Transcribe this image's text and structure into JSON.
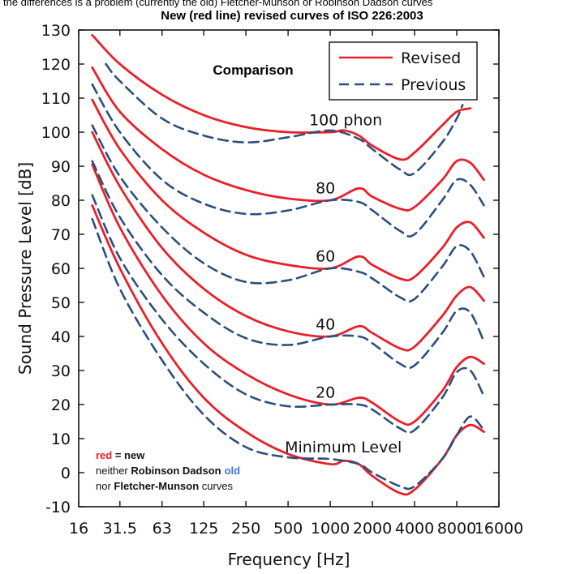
{
  "header": {
    "top_text": "the differences is a problem (currently the old) Fletcher-Munson or Robinson Dadson curves",
    "title": "New (red line) revised curves of ISO 226:2003"
  },
  "chart_data": {
    "type": "line",
    "title": "Comparison",
    "xlabel": "Frequency [Hz]",
    "ylabel": "Sound Pressure Level [dB]",
    "x_scale": "log",
    "x_ticks": [
      16,
      31.5,
      63,
      125,
      250,
      500,
      1000,
      2000,
      4000,
      8000,
      16000
    ],
    "x_tick_labels": [
      "16",
      "31.5",
      "63",
      "125",
      "250",
      "500",
      "1000",
      "2000",
      "4000",
      "8000",
      "16000"
    ],
    "y_ticks": [
      -10,
      0,
      10,
      20,
      30,
      40,
      50,
      60,
      70,
      80,
      90,
      100,
      110,
      120,
      130
    ],
    "xlim": [
      16,
      16000
    ],
    "ylim": [
      -10,
      130
    ],
    "grid": false,
    "legend_position": "top-right",
    "legend": [
      {
        "label": "Revised",
        "style": "solid",
        "color": "#e8202a"
      },
      {
        "label": "Previous",
        "style": "dashed",
        "color": "#2b4f7e"
      }
    ],
    "curve_labels": [
      {
        "text": "100 phon",
        "x": 1000,
        "y": 102
      },
      {
        "text": "80",
        "x": 1000,
        "y": 82
      },
      {
        "text": "60",
        "x": 1000,
        "y": 62
      },
      {
        "text": "40",
        "x": 1000,
        "y": 42
      },
      {
        "text": "20",
        "x": 1000,
        "y": 22
      },
      {
        "text": "Minimum Level",
        "x": 1000,
        "y": 6
      }
    ],
    "series": [
      {
        "group": "revised",
        "phon": 100,
        "points": [
          [
            20,
            128.5
          ],
          [
            31.5,
            120
          ],
          [
            63,
            111
          ],
          [
            125,
            105
          ],
          [
            250,
            101.5
          ],
          [
            500,
            100
          ],
          [
            1000,
            100
          ],
          [
            1250,
            100.5
          ],
          [
            1600,
            99
          ],
          [
            2000,
            96
          ],
          [
            3150,
            92
          ],
          [
            4000,
            94
          ],
          [
            6300,
            102
          ],
          [
            8000,
            106
          ],
          [
            10000,
            107
          ]
        ]
      },
      {
        "group": "revised",
        "phon": 80,
        "points": [
          [
            20,
            119
          ],
          [
            31.5,
            106
          ],
          [
            63,
            95
          ],
          [
            125,
            87.5
          ],
          [
            250,
            83
          ],
          [
            500,
            80.5
          ],
          [
            1000,
            80
          ],
          [
            1600,
            83.5
          ],
          [
            2000,
            81
          ],
          [
            3150,
            77.5
          ],
          [
            4000,
            78
          ],
          [
            6300,
            86
          ],
          [
            8000,
            91.5
          ],
          [
            10000,
            91
          ],
          [
            12500,
            86
          ]
        ]
      },
      {
        "group": "revised",
        "phon": 60,
        "points": [
          [
            20,
            109.5
          ],
          [
            31.5,
            95
          ],
          [
            63,
            80
          ],
          [
            125,
            70.5
          ],
          [
            250,
            64
          ],
          [
            500,
            61
          ],
          [
            1000,
            60
          ],
          [
            1600,
            63.5
          ],
          [
            2000,
            61
          ],
          [
            3150,
            57
          ],
          [
            4000,
            57.5
          ],
          [
            6300,
            66
          ],
          [
            8000,
            72
          ],
          [
            10000,
            73.5
          ],
          [
            12500,
            69
          ]
        ]
      },
      {
        "group": "revised",
        "phon": 40,
        "points": [
          [
            20,
            100
          ],
          [
            31.5,
            84
          ],
          [
            63,
            66
          ],
          [
            125,
            54
          ],
          [
            250,
            46
          ],
          [
            500,
            41.5
          ],
          [
            1000,
            40
          ],
          [
            1600,
            43
          ],
          [
            2000,
            41
          ],
          [
            3150,
            36.5
          ],
          [
            4000,
            37
          ],
          [
            6300,
            46
          ],
          [
            8000,
            52
          ],
          [
            10000,
            54.5
          ],
          [
            12500,
            50.5
          ]
        ]
      },
      {
        "group": "revised",
        "phon": 20,
        "points": [
          [
            20,
            90.5
          ],
          [
            31.5,
            72
          ],
          [
            63,
            52
          ],
          [
            125,
            38
          ],
          [
            250,
            29
          ],
          [
            500,
            23
          ],
          [
            1000,
            20
          ],
          [
            1600,
            22
          ],
          [
            2000,
            20.5
          ],
          [
            3150,
            15
          ],
          [
            4000,
            15
          ],
          [
            6300,
            24
          ],
          [
            8000,
            31
          ],
          [
            10000,
            34
          ],
          [
            12500,
            32
          ]
        ]
      },
      {
        "group": "revised",
        "phon": 0,
        "points": [
          [
            20,
            78.5
          ],
          [
            31.5,
            60
          ],
          [
            63,
            38
          ],
          [
            125,
            22
          ],
          [
            250,
            12
          ],
          [
            500,
            5.5
          ],
          [
            1000,
            2.5
          ],
          [
            1250,
            3.5
          ],
          [
            1600,
            2.5
          ],
          [
            2000,
            -1
          ],
          [
            3150,
            -6
          ],
          [
            4000,
            -5
          ],
          [
            6300,
            4
          ],
          [
            8000,
            11
          ],
          [
            10000,
            14
          ],
          [
            12500,
            12
          ]
        ]
      },
      {
        "group": "previous",
        "phon": 100,
        "points": [
          [
            25,
            120
          ],
          [
            31.5,
            115
          ],
          [
            63,
            104
          ],
          [
            125,
            99
          ],
          [
            250,
            97
          ],
          [
            500,
            98.5
          ],
          [
            1000,
            100.5
          ],
          [
            1600,
            98
          ],
          [
            2000,
            95
          ],
          [
            3150,
            89
          ],
          [
            4000,
            88
          ],
          [
            6300,
            97
          ],
          [
            8000,
            104
          ],
          [
            8800,
            108
          ]
        ]
      },
      {
        "group": "previous",
        "phon": 80,
        "points": [
          [
            20,
            114
          ],
          [
            31.5,
            100
          ],
          [
            63,
            86
          ],
          [
            125,
            79
          ],
          [
            250,
            76
          ],
          [
            500,
            77
          ],
          [
            1000,
            80
          ],
          [
            1600,
            79.5
          ],
          [
            2000,
            77
          ],
          [
            3150,
            71
          ],
          [
            4000,
            70
          ],
          [
            6300,
            80
          ],
          [
            8000,
            86
          ],
          [
            10000,
            84.5
          ],
          [
            12500,
            78.5
          ]
        ]
      },
      {
        "group": "previous",
        "phon": 60,
        "points": [
          [
            20,
            102
          ],
          [
            31.5,
            87
          ],
          [
            63,
            72
          ],
          [
            125,
            61.5
          ],
          [
            250,
            56
          ],
          [
            500,
            56.5
          ],
          [
            1000,
            60
          ],
          [
            1600,
            59
          ],
          [
            2000,
            57
          ],
          [
            3150,
            51.5
          ],
          [
            4000,
            51
          ],
          [
            6300,
            60.5
          ],
          [
            8000,
            66.5
          ],
          [
            10000,
            65
          ],
          [
            12500,
            57.5
          ]
        ]
      },
      {
        "group": "previous",
        "phon": 40,
        "points": [
          [
            20,
            91.5
          ],
          [
            31.5,
            75
          ],
          [
            63,
            58
          ],
          [
            125,
            47
          ],
          [
            250,
            39.5
          ],
          [
            500,
            37.5
          ],
          [
            1000,
            40
          ],
          [
            1600,
            40
          ],
          [
            2000,
            38
          ],
          [
            3150,
            32
          ],
          [
            4000,
            31.5
          ],
          [
            6300,
            41
          ],
          [
            8000,
            47.5
          ],
          [
            10000,
            47
          ],
          [
            12500,
            38.5
          ]
        ]
      },
      {
        "group": "previous",
        "phon": 20,
        "points": [
          [
            20,
            81.5
          ],
          [
            31.5,
            63
          ],
          [
            63,
            45
          ],
          [
            125,
            32
          ],
          [
            250,
            23
          ],
          [
            500,
            19.5
          ],
          [
            1000,
            20
          ],
          [
            1600,
            20
          ],
          [
            2000,
            18.5
          ],
          [
            3150,
            13
          ],
          [
            4000,
            12.5
          ],
          [
            6300,
            22
          ],
          [
            8000,
            29.5
          ],
          [
            10000,
            30
          ],
          [
            12500,
            22.5
          ]
        ]
      },
      {
        "group": "previous",
        "phon": 0,
        "points": [
          [
            20,
            74.5
          ],
          [
            31.5,
            54
          ],
          [
            63,
            33
          ],
          [
            125,
            17
          ],
          [
            250,
            7.5
          ],
          [
            500,
            4.5
          ],
          [
            1000,
            4
          ],
          [
            1600,
            2.5
          ],
          [
            2000,
            0
          ],
          [
            3150,
            -4
          ],
          [
            4000,
            -4
          ],
          [
            6300,
            4
          ],
          [
            8000,
            11
          ],
          [
            10000,
            16.5
          ],
          [
            12500,
            12.5
          ]
        ]
      }
    ]
  },
  "notes": {
    "red_word": "red",
    "eq_new": " = new",
    "neither": "neither ",
    "robinson_dadson": "Robinson Dadson",
    "old_word": "old",
    "nor": "nor ",
    "fletcher_munson": "Fletcher-Munson",
    "curves_word": " curves"
  },
  "colors": {
    "revised": "#e8202a",
    "previous": "#2b4f7e",
    "axis": "#111111",
    "old_word": "#3f6fe0"
  }
}
